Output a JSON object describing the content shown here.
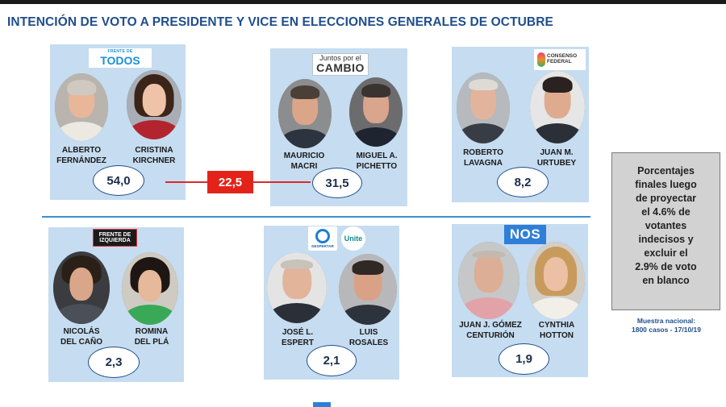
{
  "title": "INTENCIÓN DE VOTO A PRESIDENTE Y VICE EN ELECCIONES GENERALES DE OCTUBRE",
  "chart_data": {
    "type": "table",
    "title": "INTENCIÓN DE VOTO A PRESIDENTE Y VICE EN ELECCIONES GENERALES DE OCTUBRE",
    "categories": [
      "FRENTE DE TODOS",
      "Juntos por el CAMBIO",
      "CONSENSO FEDERAL",
      "FRENTE DE IZQUIERDA",
      "DESPERTAR / Unite",
      "NOS"
    ],
    "values": [
      54.0,
      31.5,
      8.2,
      2.3,
      2.1,
      1.9
    ],
    "value_labels": [
      "54,0",
      "31,5",
      "8,2",
      "2,3",
      "2,1",
      "1,9"
    ],
    "difference": {
      "between": [
        "FRENTE DE TODOS",
        "Juntos por el CAMBIO"
      ],
      "value": 22.5,
      "label": "22,5"
    },
    "tickets": [
      {
        "logo": {
          "top": "FRENTE DE",
          "main": "TODOS"
        },
        "president": [
          "ALBERTO",
          "FERNÁNDEZ"
        ],
        "vice": [
          "CRISTINA",
          "KIRCHNER"
        ],
        "value": 54.0,
        "label": "54,0"
      },
      {
        "logo": {
          "top": "Juntos por el",
          "main": "CAMBIO"
        },
        "president": [
          "MAURICIO",
          "MACRI"
        ],
        "vice": [
          "MIGUEL A.",
          "PICHETTO"
        ],
        "value": 31.5,
        "label": "31,5"
      },
      {
        "logo": {
          "top": "CONSENSO",
          "main": "FEDERAL"
        },
        "president": [
          "ROBERTO",
          "LAVAGNA"
        ],
        "vice": [
          "JUAN M.",
          "URTUBEY"
        ],
        "value": 8.2,
        "label": "8,2"
      },
      {
        "logo": {
          "top": "FRENTE DE",
          "main": "IZQUIERDA"
        },
        "president": [
          "NICOLÁS",
          "DEL CAÑO"
        ],
        "vice": [
          "ROMINA",
          "DEL PLÁ"
        ],
        "value": 2.3,
        "label": "2,3"
      },
      {
        "logo": {
          "top": "DESPERTAR",
          "main": "Unite"
        },
        "president": [
          "JOSÉ L.",
          "ESPERT"
        ],
        "vice": [
          "LUIS",
          "ROSALES"
        ],
        "value": 2.1,
        "label": "2,1"
      },
      {
        "logo": {
          "top": "",
          "main": "NOS"
        },
        "president": [
          "JUAN J. GÓMEZ",
          "CENTURIÓN"
        ],
        "vice": [
          "CYNTHIA",
          "HOTTON"
        ],
        "value": 1.9,
        "label": "1,9"
      }
    ],
    "annotations": [
      "Porcentajes finales luego de proyectar el 4.6% de votantes indecisos y excluir el 2.9% de voto en blanco",
      "Muestra nacional: 1800 casos - 17/10/19"
    ]
  },
  "note_lines": [
    "Porcentajes",
    "finales luego",
    "de proyectar",
    "el 4.6% de",
    "votantes",
    "indecisos y",
    "excluir el",
    "2.9% de voto",
    "en blanco"
  ],
  "sample": {
    "line1": "Muestra nacional:",
    "line2": "1800 casos - 17/10/19"
  },
  "colors": {
    "title": "#1f4e8c",
    "card": "#c6dcf0",
    "diff": "#e3231a",
    "divider": "#3b8fd6",
    "note_bg": "#d2d2d2"
  }
}
